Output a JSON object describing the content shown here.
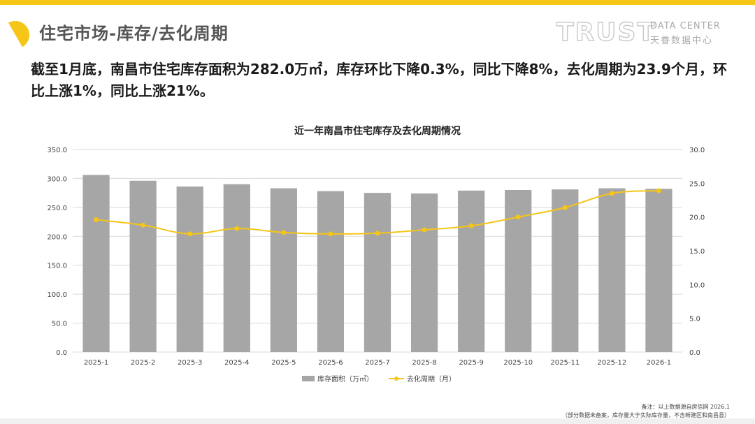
{
  "slide": {
    "title": "住宅市场-库存/去化周期",
    "summary": "截至1月底，南昌市住宅库存面积为282.0万㎡，库存环比下降0.3%，同比下降8%，去化周期为23.9个月，环比上涨1%，同比上涨21%。"
  },
  "brand": {
    "word": "TRUST",
    "en": "DATA CENTER",
    "cn": "天眷数据中心"
  },
  "colors": {
    "accent": "#f5c518",
    "bar": "#a6a6a6",
    "line": "#f5c518",
    "grid": "#d9d9d9"
  },
  "chart_data": {
    "type": "bar",
    "title": "近一年南昌市住宅库存及去化周期情况",
    "categories": [
      "2025-1",
      "2025-2",
      "2025-3",
      "2025-4",
      "2025-5",
      "2025-6",
      "2025-7",
      "2025-8",
      "2025-9",
      "2025-10",
      "2025-11",
      "2025-12",
      "2026-1"
    ],
    "series": [
      {
        "name": "库存面积（万㎡）",
        "type": "bar",
        "axis": "left",
        "values": [
          306.0,
          296.0,
          286.0,
          290.0,
          283.0,
          278.0,
          275.0,
          274.0,
          279.0,
          280.0,
          281.0,
          283.0,
          282.0
        ]
      },
      {
        "name": "去化周期（月）",
        "type": "line",
        "axis": "right",
        "values": [
          19.6,
          18.8,
          17.5,
          18.3,
          17.7,
          17.5,
          17.6,
          18.1,
          18.7,
          20.0,
          21.4,
          23.5,
          23.9
        ]
      }
    ],
    "ylim_left": [
      0,
      350
    ],
    "yticks_left": [
      "0.0",
      "50.0",
      "100.0",
      "150.0",
      "200.0",
      "250.0",
      "300.0",
      "350.0"
    ],
    "ylim_right": [
      0,
      30
    ],
    "yticks_right": [
      "0.0",
      "5.0",
      "10.0",
      "15.0",
      "20.0",
      "25.0",
      "30.0"
    ],
    "grid": true,
    "legend": "bottom-center"
  },
  "footnote": {
    "line1": "备注：以上数据源自房信网   2026.1",
    "line2": "（部分数据未备案，库存量大于实际库存量，不含新建区和南昌县）"
  }
}
